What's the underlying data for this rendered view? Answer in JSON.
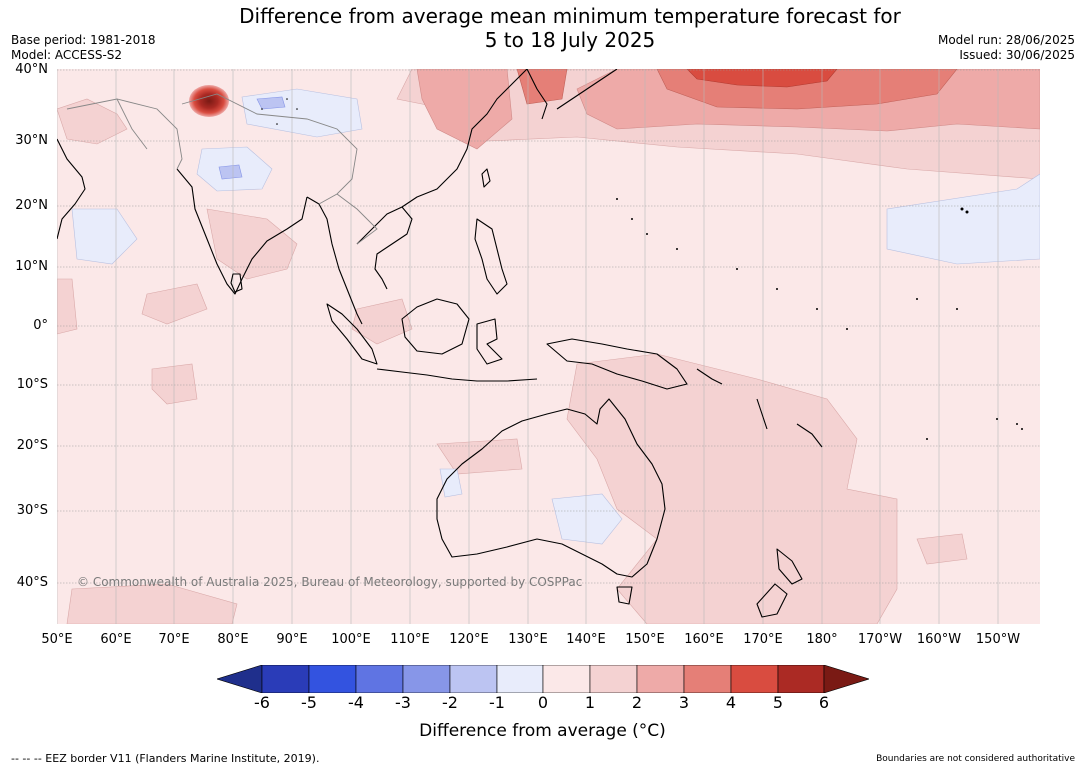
{
  "header": {
    "title_line1": "Difference from average mean minimum temperature forecast for",
    "title_line2": "5 to 18 July 2025",
    "base_period": "Base period: 1981-2018",
    "model": "Model: ACCESS-S2",
    "model_run": "Model run: 28/06/2025",
    "issued": "Issued: 30/06/2025"
  },
  "map": {
    "lat_labels": [
      "40°N",
      "30°N",
      "20°N",
      "10°N",
      "0°",
      "10°S",
      "20°S",
      "30°S",
      "40°S"
    ],
    "lon_labels": [
      "50°E",
      "60°E",
      "70°E",
      "80°E",
      "90°E",
      "100°E",
      "110°E",
      "120°E",
      "130°E",
      "140°E",
      "150°E",
      "160°E",
      "170°E",
      "180°",
      "170°W",
      "160°W",
      "150°W"
    ],
    "copyright": "© Commonwealth of Australia 2025, Bureau of Meteorology, supported by COSPPac"
  },
  "colorbar": {
    "ticks": [
      "-6",
      "-5",
      "-4",
      "-3",
      "-2",
      "-1",
      "0",
      "1",
      "2",
      "3",
      "4",
      "5",
      "6"
    ],
    "colors": [
      "#1f2f8c",
      "#2a3cb8",
      "#3353e0",
      "#5f74e3",
      "#8796e8",
      "#bcc4f2",
      "#e8ecfb",
      "#fbe8e8",
      "#f4d2d2",
      "#eeaaa8",
      "#e57f77",
      "#d94c40",
      "#ab2a24",
      "#7a1a14"
    ],
    "label": "Difference from average (°C)"
  },
  "footer": {
    "eez": "--  --  -- EEZ border V11 (Flanders Marine Institute, 2019).",
    "disclaimer": "Boundaries are not considered authoritative"
  }
}
